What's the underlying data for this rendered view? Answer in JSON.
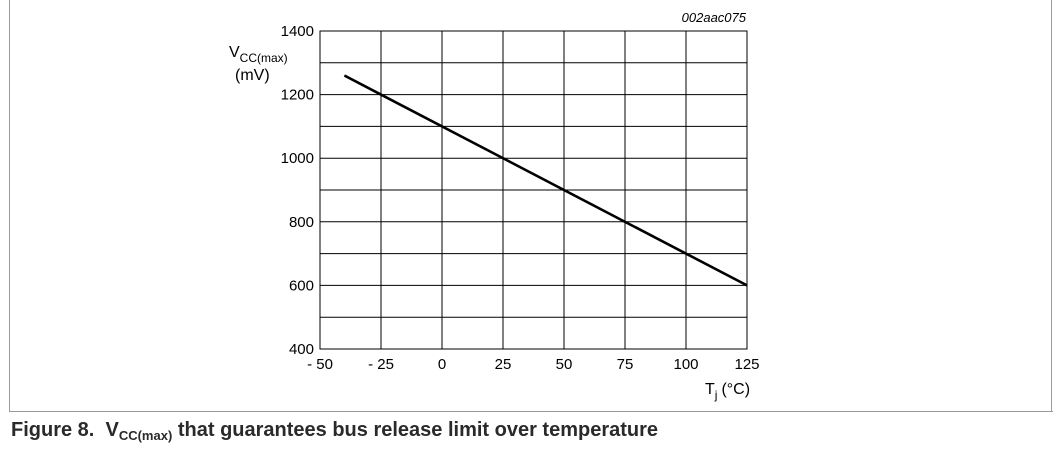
{
  "figure": {
    "number_label": "Figure 8.",
    "caption_symbol": "V",
    "caption_subscript": "CC(max)",
    "caption_rest": " that guarantees bus release limit over temperature"
  },
  "chart_data": {
    "type": "line",
    "reference_code": "002aac075",
    "ylabel_main": "V",
    "ylabel_sub": "CC(max)",
    "ylabel_unit": "(mV)",
    "xlabel_main": "T",
    "xlabel_sub": "j",
    "xlabel_unit": "(°C)",
    "xlim": [
      -50,
      125
    ],
    "ylim": [
      400,
      1400
    ],
    "x_ticks": [
      -50,
      -25,
      0,
      25,
      50,
      75,
      100,
      125
    ],
    "x_tick_labels": [
      "- 50",
      "- 25",
      "0",
      "25",
      "50",
      "75",
      "100",
      "125"
    ],
    "y_ticks": [
      400,
      600,
      800,
      1000,
      1200,
      1400
    ],
    "y_tick_labels": [
      "400",
      "600",
      "800",
      "1000",
      "1200",
      "1400"
    ],
    "y_minor_gridlines": [
      500,
      700,
      900,
      1100,
      1300
    ],
    "grid": true,
    "series": [
      {
        "x": [
          -40,
          125
        ],
        "y": [
          1260,
          600
        ],
        "color": "#000000"
      }
    ]
  }
}
